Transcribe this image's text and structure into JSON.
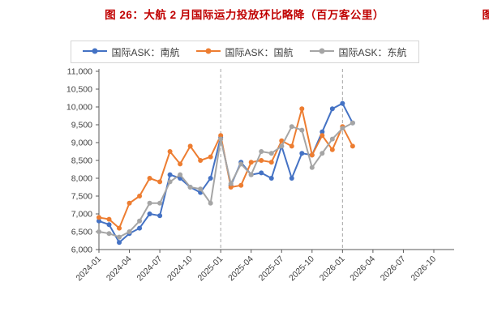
{
  "page": {
    "title": "图 26：大航 2 月国际运力投放环比略降（百万客公里）",
    "title_color": "#C00000",
    "corner_fragment": "图"
  },
  "chart_data": {
    "type": "line",
    "title": "图 26：大航 2 月国际运力投放环比略降（百万客公里）",
    "xlabel": "",
    "ylabel": "",
    "grid": false,
    "legend_position": "top",
    "ylim": [
      6000,
      11000
    ],
    "y_step": 500,
    "x_domain_months": 36,
    "x_ticks": [
      "2024-01",
      "2024-04",
      "2024-07",
      "2024-10",
      "2025-01",
      "2025-04",
      "2025-07",
      "2025-10",
      "2026-01",
      "2026-04",
      "2026-07",
      "2026-10"
    ],
    "dashed_vlines": [
      "2025-01",
      "2026-01"
    ],
    "x": [
      "2024-01",
      "2024-02",
      "2024-03",
      "2024-04",
      "2024-05",
      "2024-06",
      "2024-07",
      "2024-08",
      "2024-09",
      "2024-10",
      "2024-11",
      "2024-12",
      "2025-01",
      "2025-02",
      "2025-03",
      "2025-04",
      "2025-05",
      "2025-06",
      "2025-07",
      "2025-08",
      "2025-09",
      "2025-10",
      "2025-11",
      "2025-12",
      "2026-01",
      "2026-02"
    ],
    "series": [
      {
        "name": "国际ASK：南航",
        "color": "#4472C4",
        "values": [
          6800,
          6700,
          6200,
          6450,
          6600,
          7000,
          6950,
          8100,
          8000,
          7750,
          7600,
          8000,
          9150,
          7800,
          8450,
          8100,
          8150,
          8000,
          8900,
          8000,
          8700,
          8650,
          9300,
          9950,
          10100,
          9550
        ]
      },
      {
        "name": "国际ASK：国航",
        "color": "#ED7D31",
        "values": [
          6900,
          6850,
          6600,
          7300,
          7500,
          8000,
          7900,
          8750,
          8400,
          8900,
          8500,
          8600,
          9200,
          7750,
          7800,
          8450,
          8500,
          8450,
          9050,
          8900,
          9950,
          8650,
          9200,
          8800,
          9450,
          8900
        ]
      },
      {
        "name": "国际ASK：东航",
        "color": "#A5A5A5",
        "values": [
          6500,
          6450,
          6350,
          6500,
          6800,
          7300,
          7300,
          7900,
          8100,
          7750,
          7700,
          7300,
          9100,
          7850,
          8400,
          8100,
          8750,
          8700,
          8900,
          9450,
          9350,
          8300,
          8700,
          9100,
          9400,
          9550
        ]
      }
    ]
  }
}
